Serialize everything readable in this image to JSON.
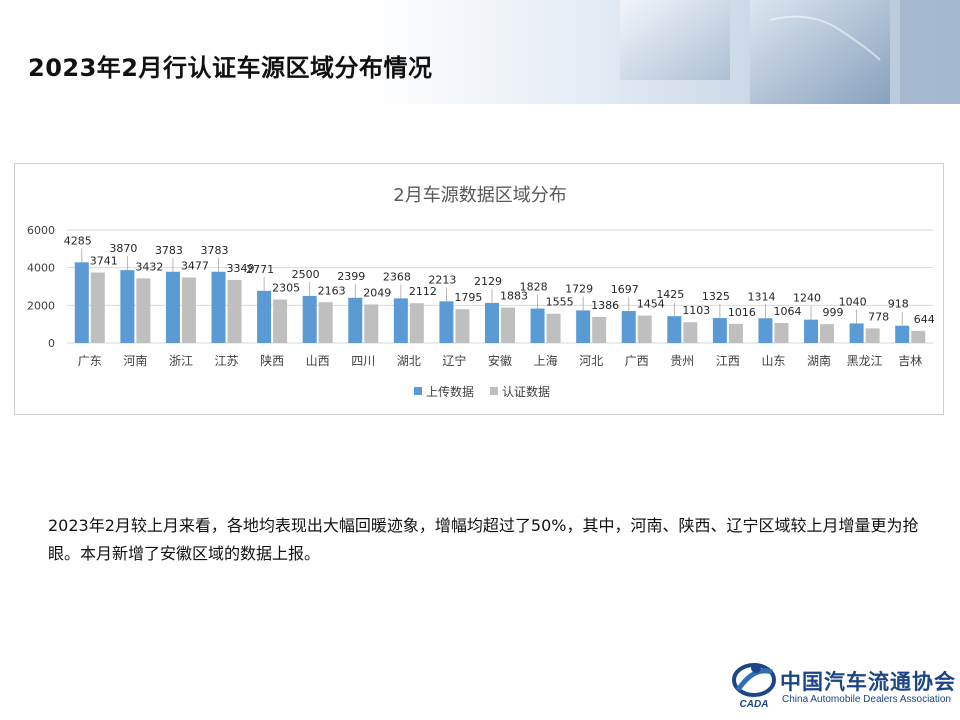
{
  "page": {
    "title": "2023年2月行认证车源区域分布情况",
    "paragraph": "2023年2月较上月来看，各地均表现出大幅回暖迹象，增幅均超过了50%，其中，河南、陕西、辽宁区域较上月增量更为抢眼。本月新增了安徽区域的数据上报。"
  },
  "logo": {
    "cn": "中国汽车流通协会",
    "en": "China Automobile Dealers Association",
    "mark_text": "CADA"
  },
  "colors": {
    "upload": "#5b9bd5",
    "certified": "#bfbfbf",
    "title_text": "#595959",
    "axis_text": "#404040",
    "logo_blue": "#1c4587"
  },
  "chart_data": {
    "type": "bar",
    "title": "2月车源数据区域分布",
    "categories": [
      "广东",
      "河南",
      "浙江",
      "江苏",
      "陕西",
      "山西",
      "四川",
      "湖北",
      "辽宁",
      "安徽",
      "上海",
      "河北",
      "广西",
      "贵州",
      "江西",
      "山东",
      "湖南",
      "黑龙江",
      "吉林"
    ],
    "series": [
      {
        "name": "上传数据",
        "values": [
          4285,
          3870,
          3783,
          3783,
          2771,
          2500,
          2399,
          2368,
          2213,
          2129,
          1828,
          1729,
          1697,
          1425,
          1325,
          1314,
          1240,
          1040,
          918
        ]
      },
      {
        "name": "认证数据",
        "values": [
          3741,
          3432,
          3477,
          3349,
          2305,
          2163,
          2049,
          2112,
          1795,
          1883,
          1555,
          1386,
          1454,
          1103,
          1016,
          1064,
          999,
          778,
          644
        ]
      }
    ],
    "ylim": [
      0,
      6000
    ],
    "yticks": [
      0,
      2000,
      4000,
      6000
    ],
    "grid": true,
    "legend_position": "bottom"
  }
}
